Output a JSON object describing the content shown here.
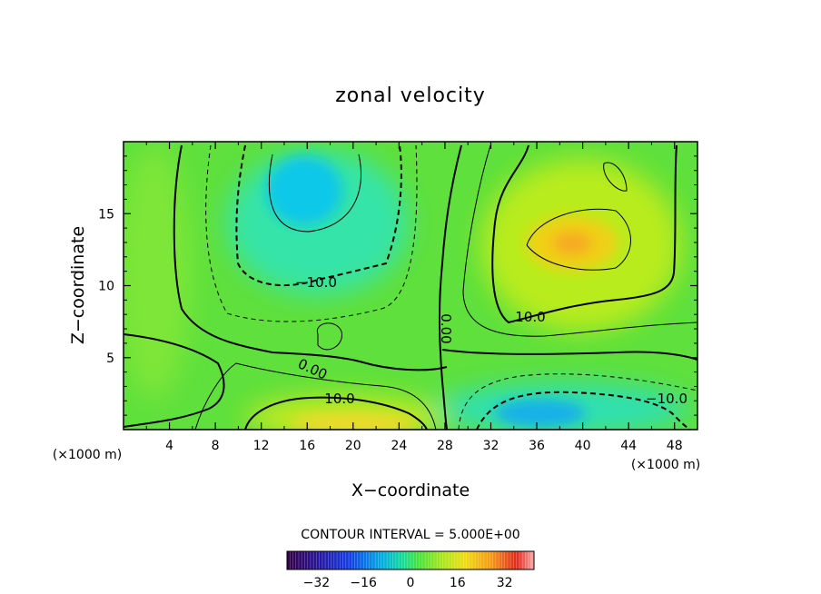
{
  "chart_data": {
    "type": "heatmap",
    "title": "zonal velocity",
    "xlabel": "X−coordinate",
    "ylabel": "Z−coordinate",
    "x_unit": "(×1000 m)",
    "z_unit": "(×1000 m)",
    "xlim": [
      0,
      50
    ],
    "ylim": [
      0,
      20
    ],
    "x_ticks": [
      4,
      8,
      12,
      16,
      20,
      24,
      28,
      32,
      36,
      40,
      44,
      48
    ],
    "x_tick_labels": [
      "4",
      "8",
      "12",
      "16",
      "20",
      "24",
      "28",
      "32",
      "36",
      "40",
      "44",
      "48"
    ],
    "y_ticks": [
      5,
      10,
      15
    ],
    "y_tick_labels": [
      "5",
      "10",
      "15"
    ],
    "contour_interval_text": "CONTOUR INTERVAL = 5.000E+00",
    "contour_labels": [
      {
        "text": "−10.0",
        "x": 17.5,
        "z": 10.2
      },
      {
        "text": "10.0",
        "x": 36.3,
        "z": 7.5
      },
      {
        "text": "0.00",
        "x": 27.7,
        "z": 7.0
      },
      {
        "text": "0.00",
        "x": 16.3,
        "z": 4.0
      },
      {
        "text": "10.0",
        "x": 18.8,
        "z": 2.0
      },
      {
        "text": "−10.0",
        "x": 46.2,
        "z": 2.0
      }
    ],
    "features": [
      {
        "name": "negative core upper",
        "x": 16.5,
        "z": 17,
        "value": -17
      },
      {
        "name": "negative core lower",
        "x": 36,
        "z": 1.2,
        "value": -18
      },
      {
        "name": "positive core upper",
        "x": 39.5,
        "z": 12.5,
        "value": 16
      },
      {
        "name": "positive core lower",
        "x": 20,
        "z": 0.6,
        "value": 14
      }
    ],
    "colorbar": {
      "range": [
        -42,
        42
      ],
      "ticks": [
        -32,
        -16,
        0,
        16,
        32
      ],
      "tick_labels": [
        "−32",
        "−16",
        "0",
        "16",
        "32"
      ]
    }
  }
}
